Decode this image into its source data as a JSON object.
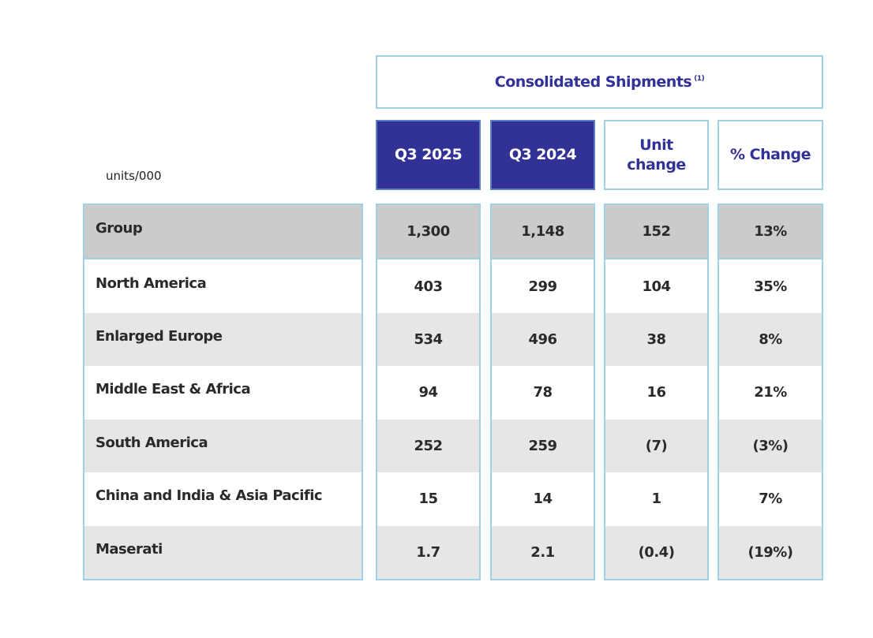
{
  "title": "Consolidated Shipments",
  "title_footnote": "(1)",
  "units": "units/000",
  "columns": [
    "Q3 2025",
    "Q3 2024",
    "Unit change",
    "% Change"
  ],
  "colors": {
    "navy": "#323296",
    "border": "#9fd0e6",
    "group_row": "#cbcbcb",
    "alt_row": "#e6e6e6"
  },
  "rows": [
    {
      "label": "Group",
      "values": [
        "1,300",
        "1,148",
        "152",
        "13%"
      ]
    },
    {
      "label": "North America",
      "values": [
        "403",
        "299",
        "104",
        "35%"
      ]
    },
    {
      "label": "Enlarged Europe",
      "values": [
        "534",
        "496",
        "38",
        "8%"
      ]
    },
    {
      "label": "Middle East & Africa",
      "values": [
        "94",
        "78",
        "16",
        "21%"
      ]
    },
    {
      "label": "South America",
      "values": [
        "252",
        "259",
        "(7)",
        "(3%)"
      ]
    },
    {
      "label": "China and India & Asia Pacific",
      "values": [
        "15",
        "14",
        "1",
        "7%"
      ]
    },
    {
      "label": "Maserati",
      "values": [
        "1.7",
        "2.1",
        "(0.4)",
        "(19%)"
      ]
    }
  ]
}
